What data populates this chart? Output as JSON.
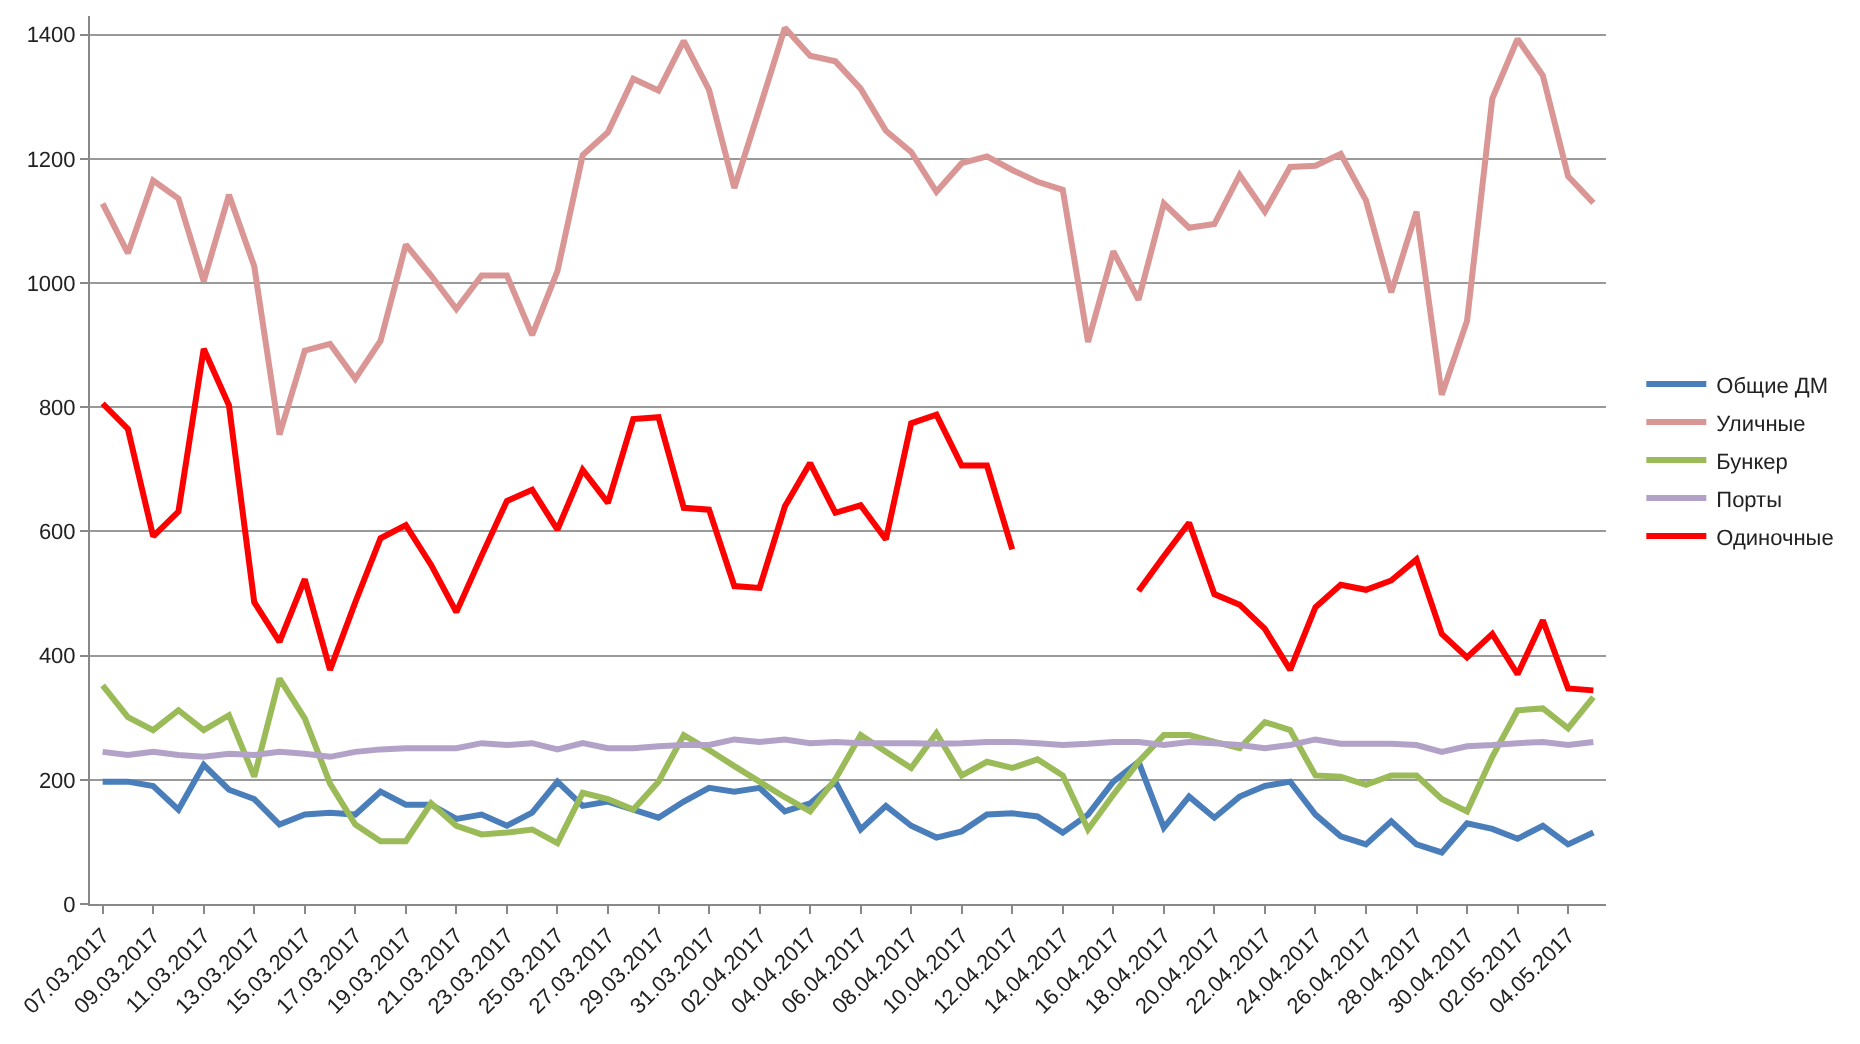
{
  "chart_data": {
    "type": "line",
    "categories": [
      "07.03.2017",
      null,
      "09.03.2017",
      null,
      "11.03.2017",
      null,
      "13.03.2017",
      null,
      "15.03.2017",
      null,
      "17.03.2017",
      null,
      "19.03.2017",
      null,
      "21.03.2017",
      null,
      "23.03.2017",
      null,
      "25.03.2017",
      null,
      "27.03.2017",
      null,
      "29.03.2017",
      null,
      "31.03.2017",
      null,
      "02.04.2017",
      null,
      "04.04.2017",
      null,
      "06.04.2017",
      null,
      "08.04.2017",
      null,
      "10.04.2017",
      null,
      "12.04.2017",
      null,
      "14.04.2017",
      null,
      "16.04.2017",
      null,
      "18.04.2017",
      null,
      "20.04.2017",
      null,
      "22.04.2017",
      null,
      "24.04.2017",
      null,
      "26.04.2017",
      null,
      "28.04.2017",
      null,
      "30.04.2017",
      null,
      "02.05.2017",
      null,
      "04.05.2017",
      null
    ],
    "series": [
      {
        "name": "Общие ДМ",
        "color": "#4a7ebb",
        "values": [
          197,
          197,
          190,
          152,
          224,
          184,
          169,
          128,
          144,
          147,
          144,
          181,
          160,
          160,
          137,
          144,
          126,
          147,
          197,
          158,
          165,
          152,
          139,
          165,
          187,
          181,
          187,
          149,
          162,
          197,
          120,
          158,
          126,
          107,
          117,
          144,
          146,
          141,
          115,
          144,
          197,
          229,
          123,
          173,
          139,
          173,
          190,
          197,
          144,
          109,
          96,
          133,
          96,
          83,
          130,
          121,
          105,
          126,
          96,
          115
        ]
      },
      {
        "name": "Уличные",
        "color": "#d99694",
        "values": [
          1128,
          1048,
          1165,
          1136,
          1003,
          1142,
          1027,
          756,
          891,
          902,
          846,
          907,
          1062,
          1012,
          958,
          1012,
          1012,
          916,
          1019,
          1206,
          1243,
          1329,
          1310,
          1390,
          1311,
          1153,
          1281,
          1411,
          1366,
          1357,
          1313,
          1245,
          1211,
          1147,
          1193,
          1204,
          1182,
          1163,
          1150,
          905,
          1051,
          973,
          1128,
          1089,
          1095,
          1174,
          1115,
          1187,
          1189,
          1208,
          1133,
          985,
          1115,
          820,
          939,
          1297,
          1393,
          1334,
          1172,
          1129
        ]
      },
      {
        "name": "Бункер",
        "color": "#9bbb59",
        "values": [
          352,
          301,
          280,
          312,
          280,
          304,
          205,
          363,
          299,
          194,
          128,
          101,
          101,
          162,
          126,
          112,
          115,
          120,
          98,
          179,
          169,
          152,
          197,
          272,
          248,
          222,
          197,
          172,
          149,
          201,
          272,
          245,
          219,
          275,
          207,
          229,
          219,
          233,
          207,
          120,
          176,
          229,
          272,
          272,
          261,
          251,
          293,
          280,
          207,
          205,
          192,
          207,
          207,
          169,
          149,
          237,
          312,
          315,
          283,
          333
        ]
      },
      {
        "name": "Порты",
        "color": "#b3a2c7",
        "values": [
          245,
          240,
          245,
          240,
          237,
          242,
          240,
          245,
          242,
          237,
          245,
          249,
          251,
          251,
          251,
          259,
          256,
          259,
          249,
          259,
          251,
          251,
          254,
          256,
          256,
          265,
          261,
          265,
          259,
          261,
          259,
          259,
          259,
          258,
          259,
          261,
          261,
          259,
          256,
          258,
          261,
          261,
          256,
          261,
          259,
          256,
          251,
          256,
          265,
          258,
          258,
          258,
          256,
          245,
          254,
          256,
          259,
          261,
          256,
          261
        ]
      },
      {
        "name": "Одиночные",
        "color": "#ff0000",
        "values": [
          806,
          765,
          592,
          632,
          894,
          803,
          486,
          422,
          523,
          377,
          486,
          589,
          610,
          546,
          470,
          561,
          649,
          667,
          603,
          699,
          646,
          781,
          784,
          638,
          635,
          512,
          509,
          640,
          710,
          630,
          642,
          587,
          774,
          788,
          706,
          706,
          571,
          null,
          null,
          null,
          null,
          504,
          560,
          614,
          499,
          482,
          443,
          377,
          478,
          514,
          506,
          521,
          555,
          435,
          397,
          435,
          370,
          457,
          347,
          344
        ]
      }
    ],
    "ylim": [
      0,
      1430
    ],
    "yticks": [
      0,
      200,
      400,
      600,
      800,
      1000,
      1200,
      1400
    ],
    "grid": "y",
    "legend": "right",
    "marker": "none",
    "line_style": "solid"
  }
}
